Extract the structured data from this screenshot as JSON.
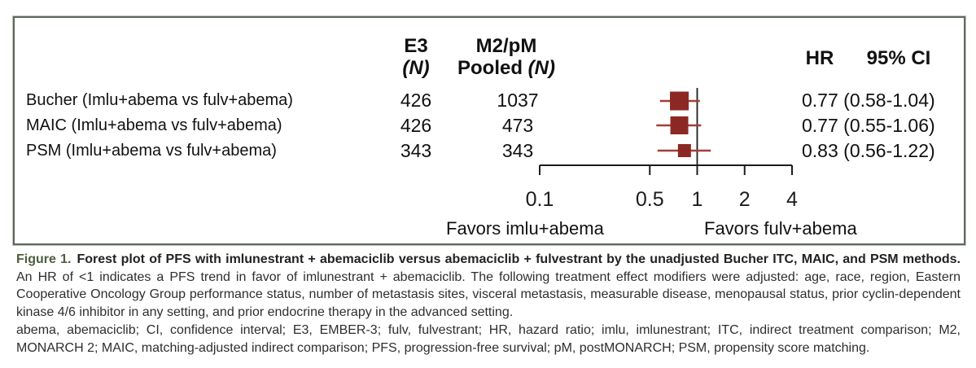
{
  "plot": {
    "headers": {
      "e3": "E3",
      "n": "(N)",
      "m2": "M2/pM",
      "pooled": "Pooled",
      "hr": "HR",
      "ci": "95% CI"
    },
    "rows": [
      {
        "label": "Bucher (Imlu+abema vs fulv+abema)",
        "e3_n": "426",
        "m2_n": "1037",
        "hr_ci": "0.77 (0.58-1.04)"
      },
      {
        "label": "MAIC (Imlu+abema vs fulv+abema)",
        "e3_n": "426",
        "m2_n": "473",
        "hr_ci": "0.77 (0.55-1.06)"
      },
      {
        "label": "PSM (Imlu+abema vs fulv+abema)",
        "e3_n": "343",
        "m2_n": "343",
        "hr_ci": "0.83 (0.56-1.22)"
      }
    ],
    "favors_left": "Favors imlu+abema",
    "favors_right": "Favors fulv+abema"
  },
  "chart_data": {
    "type": "forest",
    "title": "Forest plot of PFS with imlunestrant + abemaciclib versus abemaciclib + fulvestrant by the unadjusted Bucher ITC, MAIC, and PSM methods",
    "x_scale": "log",
    "x_range": [
      0.1,
      4
    ],
    "x_ticks": [
      0.1,
      0.5,
      1,
      2,
      4
    ],
    "reference_line": 1,
    "rows": [
      {
        "method": "Bucher (Imlu+abema vs fulv+abema)",
        "e3_n": 426,
        "m2_pm_pooled_n": 1037,
        "hr": 0.77,
        "ci_low": 0.58,
        "ci_high": 1.04,
        "marker_size": 23
      },
      {
        "method": "MAIC (Imlu+abema vs fulv+abema)",
        "e3_n": 426,
        "m2_pm_pooled_n": 473,
        "hr": 0.77,
        "ci_low": 0.55,
        "ci_high": 1.06,
        "marker_size": 22
      },
      {
        "method": "PSM (Imlu+abema vs fulv+abema)",
        "e3_n": 343,
        "m2_pm_pooled_n": 343,
        "hr": 0.83,
        "ci_low": 0.56,
        "ci_high": 1.22,
        "marker_size": 16
      }
    ],
    "favors_left": "Favors imlu+abema",
    "favors_right": "Favors fulv+abema",
    "marker_color": "#8c2823",
    "ci_line_color": "#a23f36",
    "axis_color": "#1c1c1c"
  },
  "caption": {
    "label": "Figure 1.",
    "bold_text": "Forest plot of PFS with imlunestrant + abemaciclib versus abemaciclib + fulvestrant by the unadjusted Bucher ITC, MAIC, and PSM methods.",
    "normal_text": "An HR of <1 indicates a PFS trend in favor of imlunestrant + abemaciclib. The following treatment effect modifiers were adjusted: age, race, region, Eastern Cooperative Oncology Group performance status, number of metastasis sites, visceral metastasis, measurable disease, menopausal status, prior cyclin-dependent kinase 4/6 inhibitor in any setting, and prior endocrine therapy in the advanced setting.",
    "abbreviations": "abema, abemaciclib; CI, confidence interval; E3, EMBER-3; fulv, fulvestrant; HR, hazard ratio; imlu, imlunestrant; ITC, indirect treatment comparison; M2, MONARCH 2; MAIC, matching-adjusted indirect comparison; PFS, progression-free survival; pM, postMONARCH; PSM, propensity score matching."
  }
}
